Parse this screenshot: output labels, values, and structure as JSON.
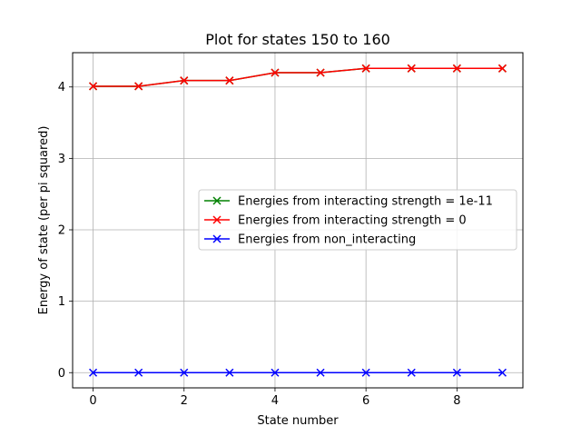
{
  "chart_data": {
    "type": "line",
    "title": "Plot for states 150 to 160",
    "xlabel": "State number",
    "ylabel": "Energy of state (per pi squared)",
    "x": [
      0,
      1,
      2,
      3,
      4,
      5,
      6,
      7,
      8,
      9
    ],
    "xlim": [
      -0.45,
      9.45
    ],
    "ylim": [
      -0.213,
      4.48
    ],
    "xticks": [
      0,
      2,
      4,
      6,
      8
    ],
    "yticks": [
      0,
      1,
      2,
      3,
      4
    ],
    "grid": true,
    "legend_position": "center-right",
    "series": [
      {
        "name": "Energies from interacting strength = 1e-11",
        "color": "#008000",
        "marker": "x",
        "values": [
          4.01,
          4.01,
          4.09,
          4.09,
          4.2,
          4.2,
          4.26,
          4.26,
          4.26,
          4.26
        ]
      },
      {
        "name": "Energies from interacting strength = 0",
        "color": "#ff0000",
        "marker": "x",
        "values": [
          4.01,
          4.01,
          4.09,
          4.09,
          4.2,
          4.2,
          4.26,
          4.26,
          4.26,
          4.26
        ]
      },
      {
        "name": "Energies from non_interacting",
        "color": "#0000ff",
        "marker": "x",
        "values": [
          0,
          0,
          0,
          0,
          0,
          0,
          0,
          0,
          0,
          0
        ]
      }
    ]
  }
}
